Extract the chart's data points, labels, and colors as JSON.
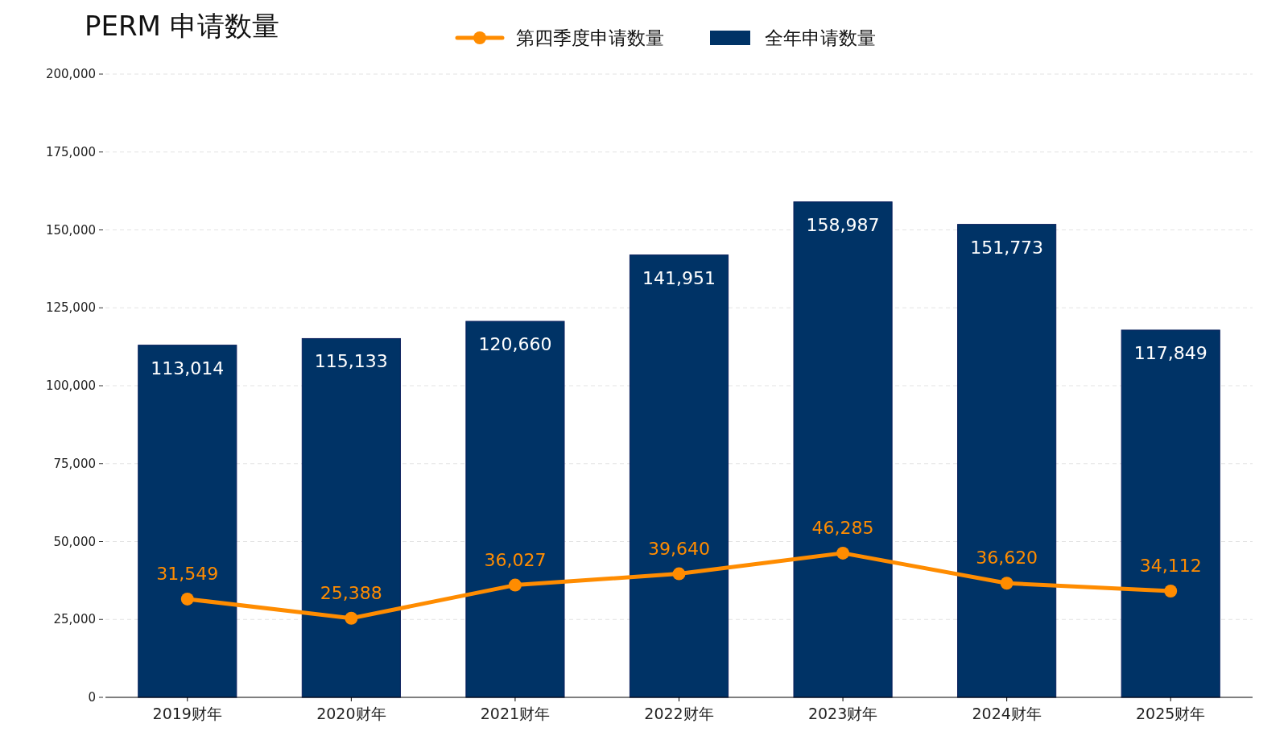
{
  "chart_data": {
    "type": "bar",
    "title": "PERM 申请数量",
    "categories": [
      "2019财年",
      "2020财年",
      "2021财年",
      "2022财年",
      "2023财年",
      "2024财年",
      "2025财年"
    ],
    "series": [
      {
        "name": "第四季度申请数量",
        "type": "line",
        "color": "#ff8c00",
        "marker": "circle",
        "values": [
          31549,
          25388,
          36027,
          39640,
          46285,
          36620,
          34112
        ],
        "value_labels": [
          "31,549",
          "25,388",
          "36,027",
          "39,640",
          "46,285",
          "36,620",
          "34,112"
        ]
      },
      {
        "name": "全年申请数量",
        "type": "bar",
        "color": "#003366",
        "values": [
          113014,
          115133,
          120660,
          141951,
          158987,
          151773,
          117849
        ],
        "value_labels": [
          "113,014",
          "115,133",
          "120,660",
          "141,951",
          "158,987",
          "151,773",
          "117,849"
        ]
      }
    ],
    "ylim": [
      0,
      200000
    ],
    "yticks": [
      {
        "value": 0,
        "label": "0"
      },
      {
        "value": 25000,
        "label": "25,000"
      },
      {
        "value": 50000,
        "label": "50,000"
      },
      {
        "value": 75000,
        "label": "75,000"
      },
      {
        "value": 100000,
        "label": "100,000"
      },
      {
        "value": 125000,
        "label": "125,000"
      },
      {
        "value": 150000,
        "label": "150,000"
      },
      {
        "value": 175000,
        "label": "175,000"
      },
      {
        "value": 200000,
        "label": "200,000"
      }
    ],
    "grid": "y",
    "legend": "top"
  }
}
